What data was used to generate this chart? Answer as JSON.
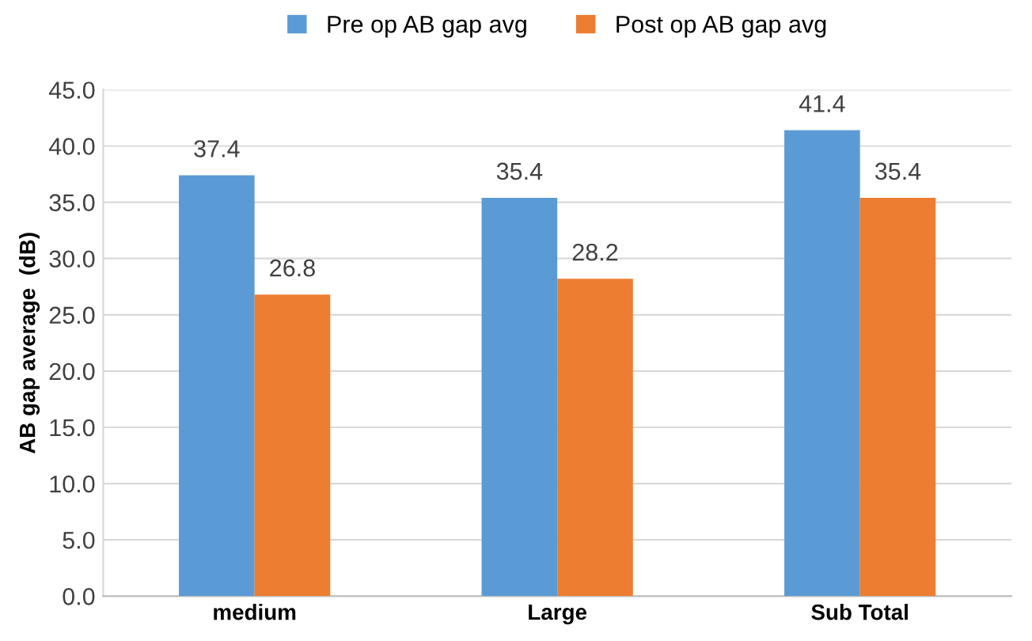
{
  "chart_data": {
    "type": "bar",
    "ylabel": "AB gap average  (dB)",
    "categories": [
      "medium",
      "Large",
      "Sub Total"
    ],
    "series": [
      {
        "name": "Pre op AB gap avg",
        "color": "#5b9bd5",
        "values": [
          37.4,
          35.4,
          41.4
        ]
      },
      {
        "name": "Post op AB gap avg",
        "color": "#ed7d31",
        "values": [
          26.8,
          28.2,
          35.4
        ]
      }
    ],
    "ylim": [
      0,
      45
    ],
    "yticks": [
      {
        "value": 0,
        "label": "0.0"
      },
      {
        "value": 5,
        "label": "5.0"
      },
      {
        "value": 10,
        "label": "10.0"
      },
      {
        "value": 15,
        "label": "15.0"
      },
      {
        "value": 20,
        "label": "20.0"
      },
      {
        "value": 25,
        "label": "25.0"
      },
      {
        "value": 30,
        "label": "30.0"
      },
      {
        "value": 35,
        "label": "35.0"
      },
      {
        "value": 40,
        "label": "40.0"
      },
      {
        "value": 45,
        "label": "45.0"
      }
    ],
    "grid": "y",
    "legend": "top",
    "data_labels": true
  }
}
